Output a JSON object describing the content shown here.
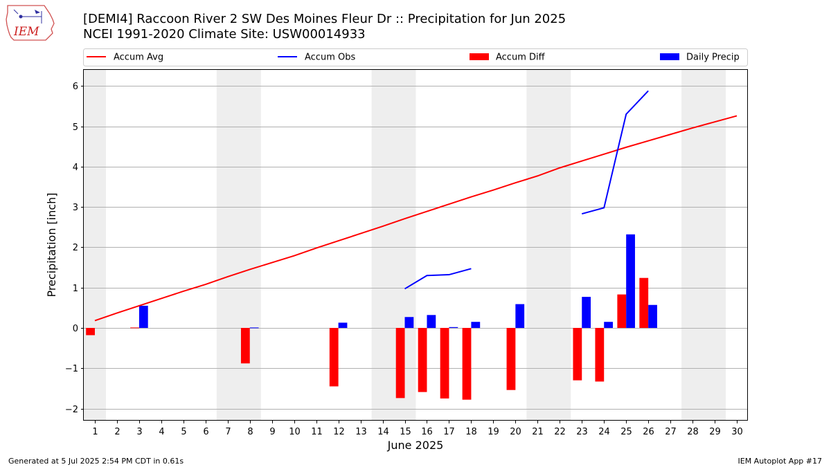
{
  "title_line1": "[DEMI4] Raccoon River 2 SW Des Moines Fleur Dr :: Precipitation for Jun 2025",
  "title_line2": "NCEI 1991-2020 Climate Site: USW00014933",
  "logo_text": "IEM",
  "footer_left": "Generated at 5 Jul 2025 2:54 PM CDT in 0.61s",
  "footer_right": "IEM Autoplot App #17",
  "colors": {
    "accum_avg": "#ff0000",
    "accum_obs": "#0000ff",
    "accum_diff": "#ff0000",
    "daily_precip": "#0000ff",
    "weekend_band": "#eeeeee",
    "grid": "#b0b0b0"
  },
  "chart_data": {
    "type": "bar",
    "xlabel": "June 2025",
    "ylabel": "Precipitation [inch]",
    "xlim": [
      0.5,
      30.5
    ],
    "ylim": [
      -2.3,
      6.4
    ],
    "yticks": [
      -2,
      -1,
      0,
      1,
      2,
      3,
      4,
      5,
      6
    ],
    "ytick_labels": [
      "−2",
      "−1",
      "0",
      "1",
      "2",
      "3",
      "4",
      "5",
      "6"
    ],
    "categories": [
      "1",
      "2",
      "3",
      "4",
      "5",
      "6",
      "7",
      "8",
      "9",
      "10",
      "11",
      "12",
      "13",
      "14",
      "15",
      "16",
      "17",
      "18",
      "19",
      "20",
      "21",
      "22",
      "23",
      "24",
      "25",
      "26",
      "27",
      "28",
      "29",
      "30"
    ],
    "grid": "horizontal",
    "legend_position": "top",
    "weekend_bands": [
      [
        0.5,
        1.5
      ],
      [
        6.5,
        8.5
      ],
      [
        13.5,
        15.5
      ],
      [
        20.5,
        22.5
      ],
      [
        27.5,
        29.5
      ]
    ],
    "series": [
      {
        "name": "Accum Avg",
        "kind": "line",
        "x": [
          1,
          2,
          3,
          4,
          5,
          6,
          7,
          8,
          9,
          10,
          11,
          12,
          13,
          14,
          15,
          16,
          17,
          18,
          19,
          20,
          21,
          22,
          23,
          24,
          25,
          26,
          27,
          28,
          29,
          30
        ],
        "values": [
          0.18,
          0.37,
          0.55,
          0.73,
          0.91,
          1.08,
          1.27,
          1.45,
          1.62,
          1.79,
          1.98,
          2.16,
          2.34,
          2.52,
          2.71,
          2.89,
          3.07,
          3.25,
          3.42,
          3.6,
          3.77,
          3.97,
          4.14,
          4.31,
          4.48,
          4.64,
          4.8,
          4.96,
          5.11,
          5.26
        ]
      },
      {
        "name": "Accum Obs",
        "kind": "line",
        "segments": [
          {
            "x": [
              15,
              16,
              17,
              18
            ],
            "values": [
              0.97,
              1.3,
              1.32,
              1.47
            ]
          },
          {
            "x": [
              23,
              24,
              25,
              26
            ],
            "values": [
              2.83,
              2.98,
              5.3,
              5.88
            ]
          }
        ]
      },
      {
        "name": "Accum Diff",
        "kind": "bar",
        "offset": -0.2,
        "x": [
          1,
          3,
          8,
          12,
          15,
          16,
          17,
          18,
          20,
          23,
          24,
          25,
          26
        ],
        "values": [
          -0.18,
          0.01,
          -0.88,
          -1.45,
          -1.74,
          -1.59,
          -1.75,
          -1.78,
          -1.54,
          -1.3,
          -1.33,
          0.83,
          1.24
        ]
      },
      {
        "name": "Daily Precip",
        "kind": "bar",
        "offset": 0.2,
        "x": [
          3,
          8,
          12,
          15,
          16,
          17,
          18,
          20,
          23,
          24,
          25,
          26
        ],
        "values": [
          0.55,
          0.01,
          0.13,
          0.27,
          0.32,
          0.02,
          0.15,
          0.59,
          0.77,
          0.15,
          2.32,
          0.57
        ]
      }
    ]
  }
}
